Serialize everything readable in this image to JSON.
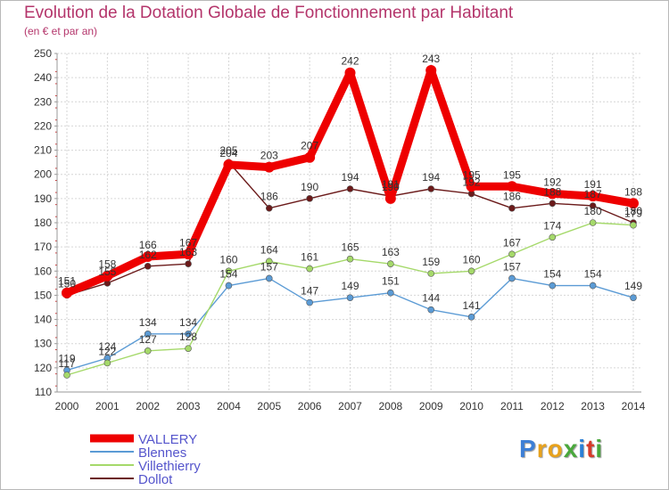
{
  "title": "Evolution de la Dotation Globale de Fonctionnement par Habitant",
  "subtitle": "(en € et par an)",
  "logo": "Proxiti",
  "chart_data": {
    "type": "line",
    "title": "Evolution de la Dotation Globale de Fonctionnement par Habitant",
    "subtitle": "(en € et par an)",
    "xlabel": "",
    "ylabel": "",
    "ylim": [
      110,
      250
    ],
    "yticks": [
      110,
      120,
      130,
      140,
      150,
      160,
      170,
      180,
      190,
      200,
      210,
      220,
      230,
      240,
      250
    ],
    "grid": true,
    "legend_position": "bottom-left",
    "x": [
      "2000",
      "2001",
      "2002",
      "2003",
      "2004",
      "2005",
      "2006",
      "2007",
      "2008",
      "2009",
      "2010",
      "2011",
      "2012",
      "2013",
      "2014"
    ],
    "series": [
      {
        "name": "Dollot",
        "color": "#6b1a1a",
        "values": [
          150,
          155,
          162,
          163,
          205,
          186,
          190,
          194,
          191,
          194,
          192,
          186,
          188,
          187,
          180
        ]
      },
      {
        "name": "Blennes",
        "color": "#5b9bd5",
        "values": [
          119,
          124,
          134,
          134,
          154,
          157,
          147,
          149,
          151,
          144,
          141,
          157,
          154,
          154,
          149
        ]
      },
      {
        "name": "Villethierry",
        "color": "#a5d96a",
        "values": [
          117,
          122,
          127,
          128,
          160,
          164,
          161,
          165,
          163,
          159,
          160,
          167,
          174,
          180,
          179
        ]
      },
      {
        "name": "VALLERY",
        "color": "#ee0000",
        "values": [
          151,
          158,
          166,
          167,
          204,
          203,
          207,
          242,
          190,
          243,
          195,
          195,
          192,
          191,
          188
        ]
      }
    ]
  }
}
